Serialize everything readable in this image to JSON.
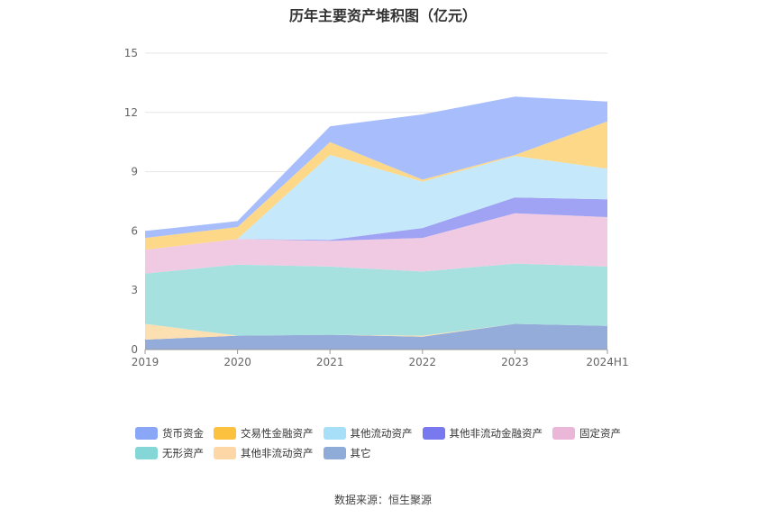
{
  "chart_data": {
    "type": "area",
    "stacked": true,
    "title": "历年主要资产堆积图（亿元）",
    "categories": [
      "2019",
      "2020",
      "2021",
      "2022",
      "2023",
      "2024H1"
    ],
    "ylim": [
      0,
      15
    ],
    "yticks": [
      0,
      3,
      6,
      9,
      12,
      15
    ],
    "grid": true,
    "legend_position": "bottom",
    "series": [
      {
        "name": "其它",
        "color": "#93acd9",
        "values": [
          0.5,
          0.7,
          0.75,
          0.65,
          1.3,
          1.2
        ]
      },
      {
        "name": "其他非流动资产",
        "color": "#fde0b2",
        "values": [
          0.8,
          0.0,
          0.0,
          0.05,
          0.0,
          0.0
        ]
      },
      {
        "name": "无形资产",
        "color": "#a6e1e0",
        "values": [
          2.55,
          3.6,
          3.45,
          3.25,
          3.05,
          3.0
        ]
      },
      {
        "name": "固定资产",
        "color": "#efcae2",
        "values": [
          1.2,
          1.3,
          1.3,
          1.7,
          2.55,
          2.5
        ]
      },
      {
        "name": "其他非流动金融资产",
        "color": "#a0a3f4",
        "values": [
          0.0,
          0.0,
          0.05,
          0.5,
          0.8,
          0.9
        ]
      },
      {
        "name": "其他流动资产",
        "color": "#c5e9fb",
        "values": [
          0.0,
          0.0,
          4.3,
          2.35,
          2.1,
          1.55
        ]
      },
      {
        "name": "交易性金融资产",
        "color": "#fdd888",
        "values": [
          0.6,
          0.6,
          0.65,
          0.1,
          0.05,
          2.4
        ]
      },
      {
        "name": "货币资金",
        "color": "#a8bdfb",
        "values": [
          0.35,
          0.3,
          0.8,
          3.3,
          2.95,
          1.0
        ]
      }
    ]
  },
  "legend": [
    {
      "name": "货币资金",
      "color": "#8aa6f7"
    },
    {
      "name": "交易性金融资产",
      "color": "#fbc13f"
    },
    {
      "name": "其他流动资产",
      "color": "#a7dff8"
    },
    {
      "name": "其他非流动金融资产",
      "color": "#7878ef"
    },
    {
      "name": "固定资产",
      "color": "#ebb7d8"
    },
    {
      "name": "无形资产",
      "color": "#85d6d6"
    },
    {
      "name": "其他非流动资产",
      "color": "#fdd8a6"
    },
    {
      "name": "其它",
      "color": "#8fabd8"
    }
  ],
  "source": "数据来源：恒生聚源"
}
